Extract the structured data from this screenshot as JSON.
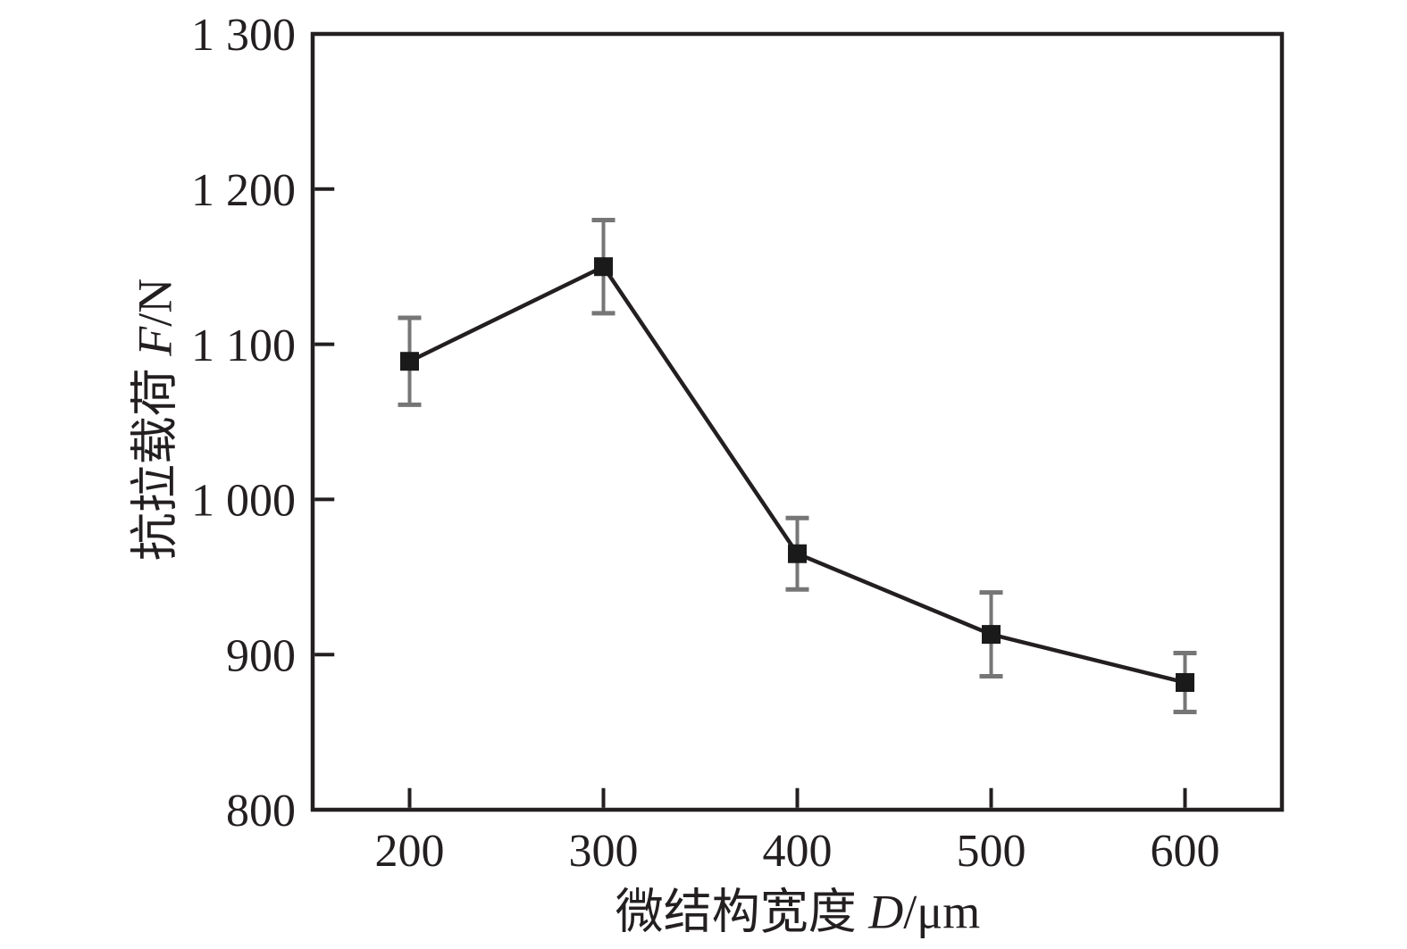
{
  "chart_data": {
    "type": "line",
    "title": "",
    "x": [
      200,
      300,
      400,
      500,
      600
    ],
    "series": [
      {
        "name": "抗拉载荷",
        "values": [
          1089,
          1150,
          965,
          913,
          882
        ],
        "errors": [
          28,
          30,
          23,
          27,
          19
        ],
        "marker": "square",
        "line_color": "#231f20",
        "marker_color": "#1a1a1a",
        "error_bar_color": "#767676"
      }
    ],
    "xlabel": {
      "prefix": "微结构宽度 ",
      "italic_var": "D",
      "suffix": "/μm"
    },
    "ylabel": {
      "prefix": "抗拉载荷 ",
      "italic_var": "F",
      "suffix": "/N"
    },
    "xlim": [
      150,
      650
    ],
    "ylim": [
      800,
      1300
    ],
    "x_ticks": [
      200,
      300,
      400,
      500,
      600
    ],
    "x_tick_labels": [
      "200",
      "300",
      "400",
      "500",
      "600"
    ],
    "y_ticks": [
      800,
      900,
      1000,
      1100,
      1200,
      1300
    ],
    "y_tick_labels": [
      "800",
      "900",
      "1 000",
      "1 100",
      "1 200",
      "1 300"
    ],
    "grid": false,
    "legend": "none",
    "background": "#ffffff",
    "axis_color": "#231f20"
  }
}
